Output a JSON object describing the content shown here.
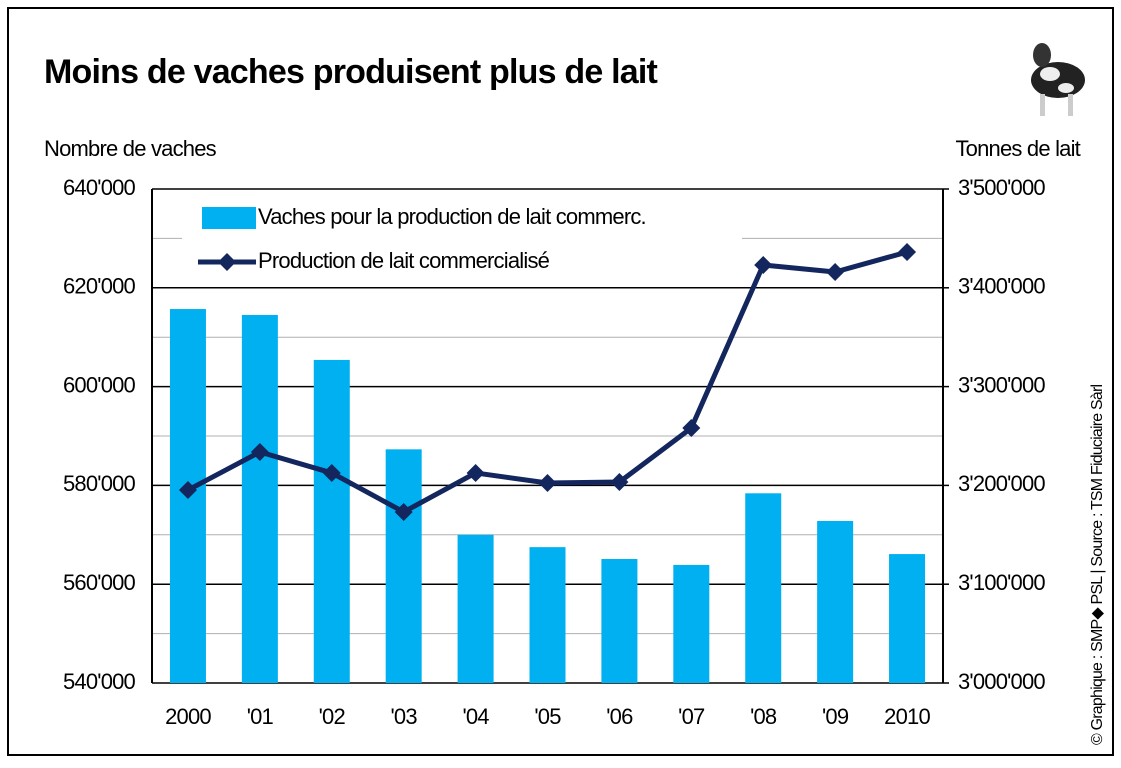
{
  "chart_data": {
    "type": "bar_line",
    "title": "Moins de vaches produisent plus de lait",
    "y_label": "Nombre de vaches",
    "y2_label": "Tonnes de lait",
    "credit": "© Graphique : SMP◆ PSL | Source : TSM Fiduciaire Sàrl",
    "categories": [
      "2000",
      "'01",
      "'02",
      "'03",
      "'04",
      "'05",
      "'06",
      "'07",
      "'08",
      "'09",
      "2010"
    ],
    "series": [
      {
        "name": "Vaches pour la production de lait commerc.",
        "type": "bar",
        "axis": "y",
        "color": "#00b0f0",
        "values": [
          615700,
          614500,
          605400,
          587300,
          570000,
          567500,
          565100,
          563900,
          578400,
          572800,
          566100
        ]
      },
      {
        "name": "Production de lait commercialisé",
        "type": "line",
        "axis": "y2",
        "color": "#13265e",
        "values": [
          3195300,
          3233800,
          3212600,
          3173100,
          3212600,
          3202400,
          3203400,
          3258100,
          3423100,
          3416000,
          3436200
        ]
      }
    ],
    "ylim": [
      540000,
      640000
    ],
    "yticks": [
      {
        "value": 540000,
        "label": "540'000"
      },
      {
        "value": 560000,
        "label": "560'000"
      },
      {
        "value": 580000,
        "label": "580'000"
      },
      {
        "value": 600000,
        "label": "600'000"
      },
      {
        "value": 620000,
        "label": "620'000"
      },
      {
        "value": 640000,
        "label": "640'000"
      }
    ],
    "y2lim": [
      3000000,
      3500000
    ],
    "y2ticks": [
      {
        "value": 3000000,
        "label": "3'000'000"
      },
      {
        "value": 3100000,
        "label": "3'100'000"
      },
      {
        "value": 3200000,
        "label": "3'200'000"
      },
      {
        "value": 3300000,
        "label": "3'300'000"
      },
      {
        "value": 3400000,
        "label": "3'400'000"
      },
      {
        "value": 3500000,
        "label": "3'500'000"
      }
    ],
    "grid": true,
    "minor_grid": true,
    "legend": "upper left"
  }
}
